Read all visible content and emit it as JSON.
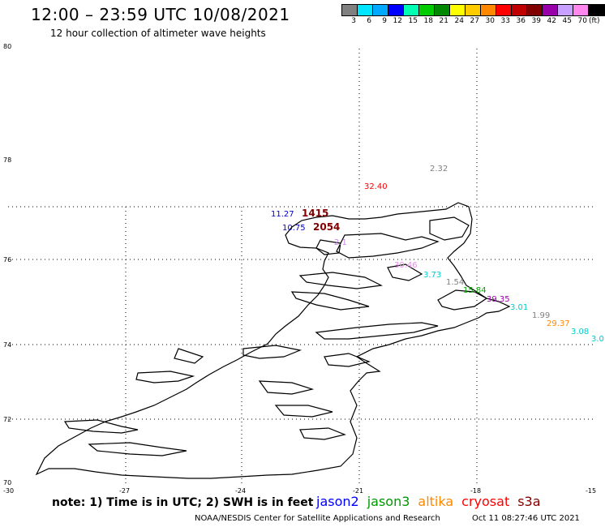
{
  "header": {
    "title": "12:00 – 23:59 UTC 10/08/2021",
    "subtitle": "12 hour collection of altimeter wave heights"
  },
  "colorbar": {
    "colors": [
      "#808080",
      "#00e5ff",
      "#00a8ff",
      "#0000ff",
      "#00ffb0",
      "#00cc00",
      "#008800",
      "#ffff00",
      "#ffcc00",
      "#ff8800",
      "#ff0000",
      "#c00000",
      "#800000",
      "#9900aa",
      "#c8a0ff",
      "#ff88ee",
      "#000000"
    ],
    "labels": [
      "3",
      "6",
      "9",
      "12",
      "15",
      "18",
      "21",
      "24",
      "27",
      "30",
      "33",
      "36",
      "39",
      "42",
      "45",
      "70"
    ],
    "unit": "(ft)"
  },
  "axes": {
    "lat_labels": [
      "80",
      "78",
      "76",
      "74",
      "72",
      "70"
    ],
    "lon_labels": [
      "-30",
      "-27",
      "-24",
      "-21",
      "-18",
      "-15"
    ]
  },
  "observations": [
    {
      "text": "2.32",
      "color": "#808080"
    },
    {
      "text": "32.40",
      "color": "#ff0000"
    },
    {
      "text": "11.27",
      "color": "#0000cc"
    },
    {
      "text": "1415",
      "color": "#800000"
    },
    {
      "text": "10.75",
      "color": "#0000cc"
    },
    {
      "text": "2054",
      "color": "#800000"
    },
    {
      "text": "2.1",
      "color": "#cc88ee"
    },
    {
      "text": "30.46",
      "color": "#ee88ee"
    },
    {
      "text": "3.73",
      "color": "#00cccc"
    },
    {
      "text": "1.54",
      "color": "#808080"
    },
    {
      "text": "15.84",
      "color": "#00aa00"
    },
    {
      "text": "39.35",
      "color": "#9900aa"
    },
    {
      "text": "3.01",
      "color": "#00cccc"
    },
    {
      "text": "1.99",
      "color": "#808080"
    },
    {
      "text": "29.37",
      "color": "#ff8800"
    },
    {
      "text": "3.08",
      "color": "#00cccc"
    },
    {
      "text": "3.0",
      "color": "#00cccc"
    }
  ],
  "footer": {
    "note": "note: 1) Time is in UTC; 2) SWH is in feet",
    "satellites": [
      {
        "name": "jason2",
        "color": "#0000ff"
      },
      {
        "name": "jason3",
        "color": "#009900"
      },
      {
        "name": "altika",
        "color": "#ff8800"
      },
      {
        "name": "cryosat",
        "color": "#ff0000"
      },
      {
        "name": "s3a",
        "color": "#800000"
      }
    ],
    "credit": "NOAA/NESDIS Center for Satellite Applications and Research",
    "timestamp": "Oct 11 08:27:46 UTC 2021"
  }
}
